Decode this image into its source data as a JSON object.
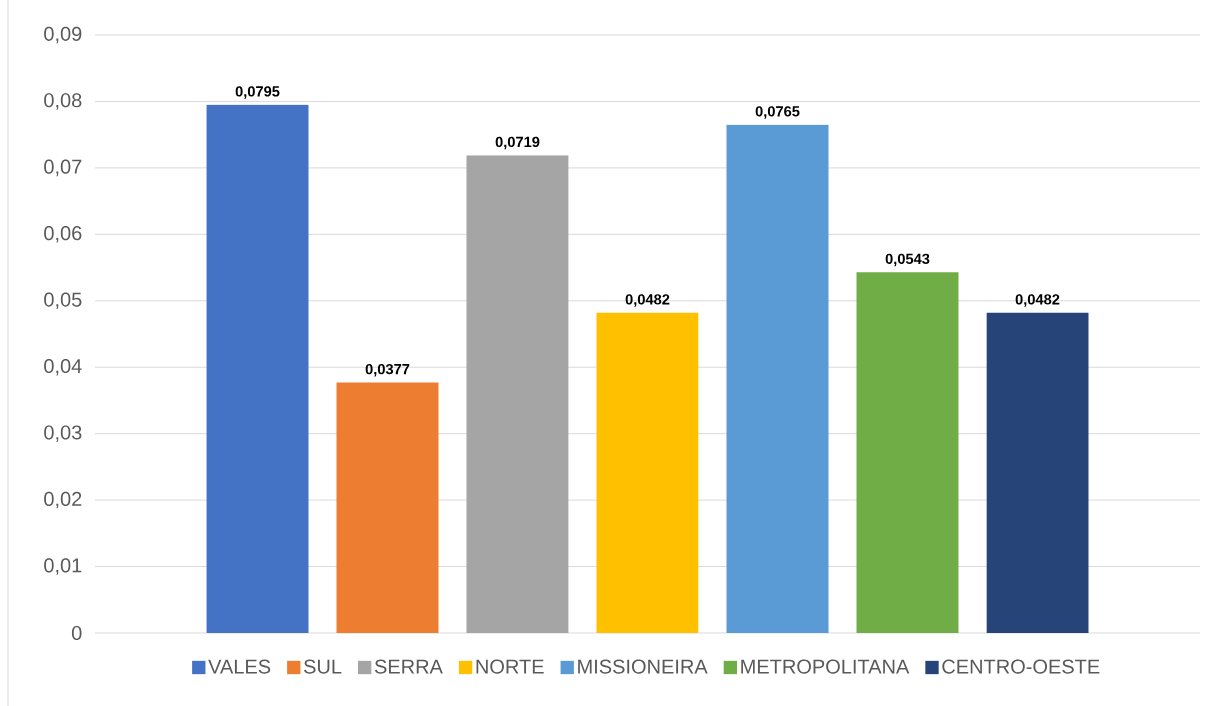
{
  "chart_data": {
    "type": "bar",
    "categories": [
      null
    ],
    "series": [
      {
        "name": "VALES",
        "color": "#4472c4",
        "values": [
          0.0795
        ],
        "value_labels": [
          "0,0795"
        ]
      },
      {
        "name": "SUL",
        "color": "#ed7d31",
        "values": [
          0.0377
        ],
        "value_labels": [
          "0,0377"
        ]
      },
      {
        "name": "SERRA",
        "color": "#a5a5a5",
        "values": [
          0.0719
        ],
        "value_labels": [
          "0,0719"
        ]
      },
      {
        "name": "NORTE",
        "color": "#ffc000",
        "values": [
          0.0482
        ],
        "value_labels": [
          "0,0482"
        ]
      },
      {
        "name": "MISSIONEIRA",
        "color": "#5b9bd5",
        "values": [
          0.0765
        ],
        "value_labels": [
          "0,0765"
        ]
      },
      {
        "name": "METROPOLITANA",
        "color": "#70ad47",
        "values": [
          0.0543
        ],
        "value_labels": [
          "0,0543"
        ]
      },
      {
        "name": "CENTRO-OESTE",
        "color": "#264478",
        "values": [
          0.0482
        ],
        "value_labels": [
          "0,0482"
        ]
      }
    ],
    "ylim": [
      0,
      0.09
    ],
    "yticks": [
      0,
      {
        "value": 0.01,
        "label": "0,01"
      },
      {
        "value": 0.02,
        "label": "0,02"
      },
      {
        "value": 0.03,
        "label": "0,03"
      },
      {
        "value": 0.04,
        "label": "0,04"
      },
      {
        "value": 0.05,
        "label": "0,05"
      },
      {
        "value": 0.06,
        "label": "0,06"
      },
      {
        "value": 0.07,
        "label": "0,07"
      },
      {
        "value": 0.08,
        "label": "0,08"
      },
      {
        "value": 0.09,
        "label": "0,09"
      }
    ],
    "grid": "y",
    "legend": "bottom"
  }
}
